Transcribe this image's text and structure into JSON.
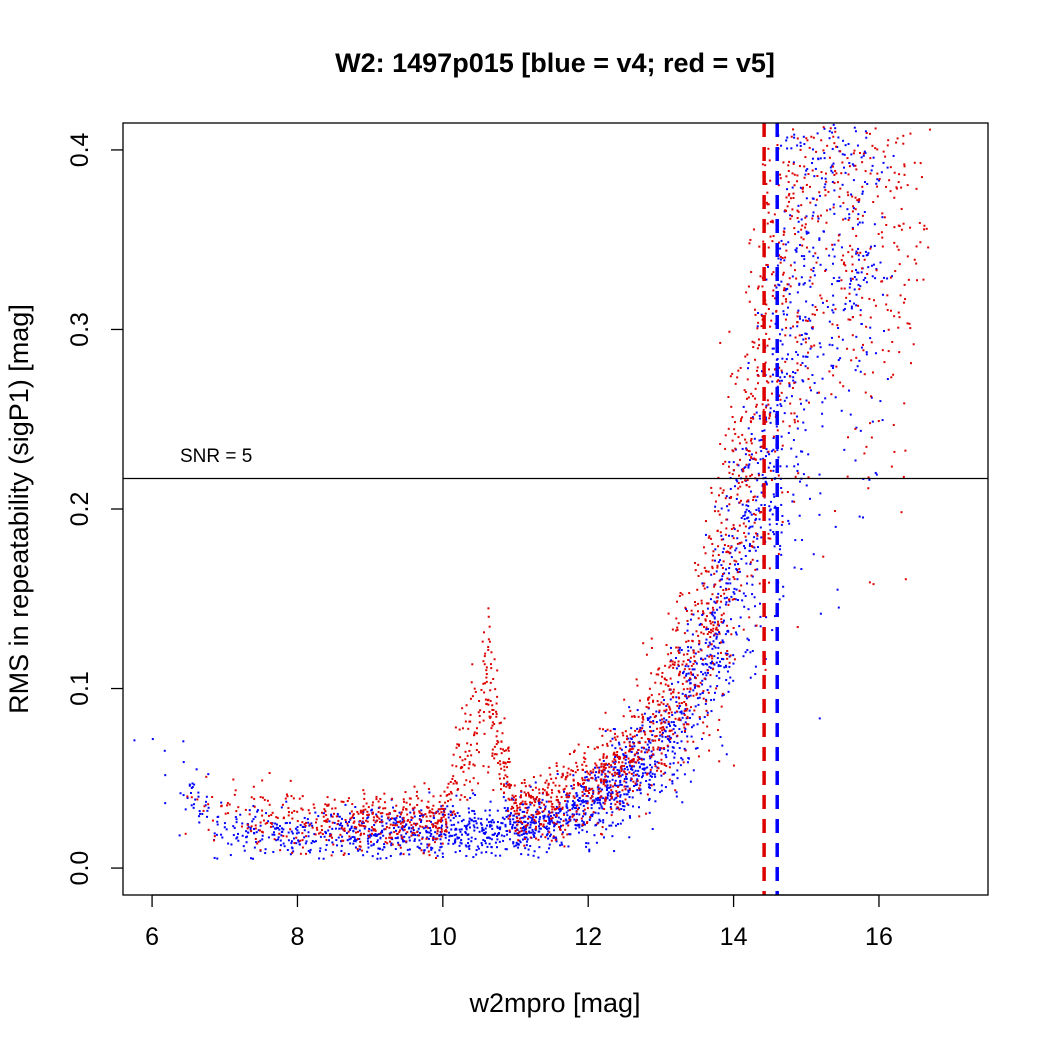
{
  "chart_data": {
    "type": "scatter",
    "title": "W2: 1497p015 [blue = v4; red = v5]",
    "xlabel": "w2mpro [mag]",
    "ylabel": "RMS in repeatability (sigP1) [mag]",
    "xlim": [
      5.6,
      17.5
    ],
    "ylim": [
      -0.015,
      0.415
    ],
    "x_ticks": [
      6,
      8,
      10,
      12,
      14,
      16
    ],
    "y_ticks": [
      0.0,
      0.1,
      0.2,
      0.3,
      0.4
    ],
    "x_tick_labels": [
      "6",
      "8",
      "10",
      "12",
      "14",
      "16"
    ],
    "y_tick_labels": [
      "0.0",
      "0.1",
      "0.2",
      "0.3",
      "0.4"
    ],
    "grid": false,
    "legend": "none (colors explained in title)",
    "colors": {
      "v4": "#0000ff",
      "v5": "#dd0000"
    },
    "series": [
      {
        "name": "v4",
        "color": "#0000ff",
        "trend_points": [
          [
            6.0,
            0.07
          ],
          [
            6.6,
            0.04
          ],
          [
            7.0,
            0.02
          ],
          [
            8.0,
            0.018
          ],
          [
            9.0,
            0.02
          ],
          [
            10.0,
            0.02
          ],
          [
            11.0,
            0.022
          ],
          [
            11.5,
            0.026
          ],
          [
            12.0,
            0.035
          ],
          [
            12.5,
            0.05
          ],
          [
            13.0,
            0.07
          ],
          [
            13.5,
            0.1
          ],
          [
            13.8,
            0.13
          ],
          [
            14.0,
            0.16
          ],
          [
            14.3,
            0.2
          ],
          [
            14.5,
            0.24
          ],
          [
            14.8,
            0.3
          ],
          [
            15.0,
            0.34
          ],
          [
            15.3,
            0.39
          ],
          [
            15.5,
            0.41
          ],
          [
            16.0,
            0.41
          ]
        ]
      },
      {
        "name": "v5",
        "color": "#dd0000",
        "trend_points": [
          [
            6.5,
            0.035
          ],
          [
            7.0,
            0.03
          ],
          [
            8.0,
            0.025
          ],
          [
            9.0,
            0.026
          ],
          [
            10.0,
            0.028
          ],
          [
            10.6,
            0.1
          ],
          [
            11.0,
            0.03
          ],
          [
            11.5,
            0.035
          ],
          [
            12.0,
            0.045
          ],
          [
            12.5,
            0.06
          ],
          [
            13.0,
            0.085
          ],
          [
            13.5,
            0.12
          ],
          [
            13.8,
            0.16
          ],
          [
            14.0,
            0.2
          ],
          [
            14.3,
            0.25
          ],
          [
            14.5,
            0.3
          ],
          [
            14.8,
            0.36
          ],
          [
            15.0,
            0.4
          ],
          [
            15.5,
            0.41
          ],
          [
            16.5,
            0.41
          ]
        ]
      }
    ],
    "reference_lines": [
      {
        "kind": "horizontal",
        "y": 0.217,
        "label": "SNR = 5",
        "color": "#000000",
        "style": "solid"
      },
      {
        "kind": "vertical",
        "x": 14.42,
        "color": "#dd0000",
        "style": "dashed",
        "series": "v5"
      },
      {
        "kind": "vertical",
        "x": 14.6,
        "color": "#0000ff",
        "style": "dashed",
        "series": "v4"
      }
    ]
  }
}
